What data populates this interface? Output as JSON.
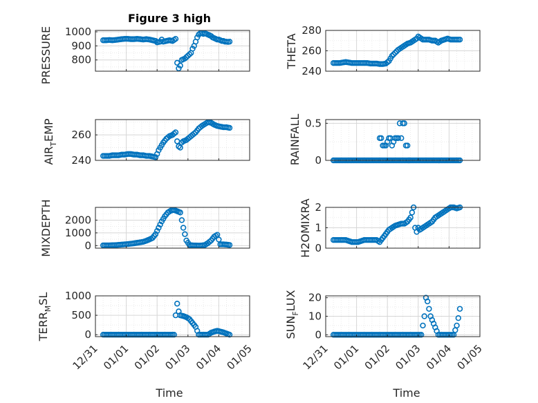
{
  "figure": {
    "title": "Figure 3 high",
    "xlabel": "Time",
    "xticks": [
      "12/31",
      "01/01",
      "01/02",
      "01/03",
      "01/04",
      "01/05"
    ]
  },
  "style": {
    "marker_color": "#0072bd",
    "grid_color": "#dfdfdf",
    "axis_color": "#262626"
  },
  "chart_data": [
    {
      "type": "scatter",
      "title": "Figure 3 high",
      "ylabel": "PRESSURE",
      "xlim": [
        0,
        5
      ],
      "ylim": [
        720,
        1010
      ],
      "yticks": [
        800,
        900,
        1000
      ],
      "xlabels_shown": false,
      "grid": true,
      "x": [
        0.25,
        0.35,
        0.45,
        0.55,
        0.65,
        0.75,
        0.85,
        0.95,
        1.05,
        1.15,
        1.25,
        1.35,
        1.45,
        1.55,
        1.65,
        1.75,
        1.85,
        1.95,
        2.0,
        2.1,
        2.15,
        2.2,
        2.3,
        2.4,
        2.5,
        2.6,
        2.65,
        2.7,
        2.75,
        2.8,
        2.85,
        2.9,
        2.95,
        3.0,
        3.05,
        3.1,
        3.15,
        3.2,
        3.25,
        3.3,
        3.35,
        3.4,
        3.45,
        3.5,
        3.55,
        3.6,
        3.65,
        3.7,
        3.75,
        3.8,
        3.85,
        3.9,
        3.95,
        4.0,
        4.05,
        4.1,
        4.15,
        4.2,
        4.25,
        4.3,
        4.35
      ],
      "y": [
        940,
        940,
        942,
        940,
        942,
        945,
        948,
        950,
        950,
        948,
        948,
        950,
        948,
        945,
        948,
        945,
        940,
        935,
        925,
        930,
        945,
        930,
        935,
        940,
        935,
        950,
        780,
        740,
        760,
        800,
        805,
        810,
        820,
        830,
        840,
        850,
        880,
        900,
        930,
        960,
        980,
        990,
        990,
        985,
        990,
        985,
        980,
        975,
        970,
        960,
        955,
        950,
        945,
        945,
        940,
        935,
        935,
        930,
        930,
        928,
        930
      ]
    },
    {
      "type": "scatter",
      "ylabel": "THETA",
      "xlim": [
        0,
        5
      ],
      "ylim": [
        240,
        280
      ],
      "yticks": [
        240,
        260,
        280
      ],
      "xlabels_shown": false,
      "grid": true,
      "x": [
        0.25,
        0.35,
        0.45,
        0.55,
        0.65,
        0.75,
        0.85,
        0.95,
        1.05,
        1.15,
        1.25,
        1.35,
        1.45,
        1.55,
        1.65,
        1.75,
        1.85,
        1.95,
        2.05,
        2.15,
        2.25,
        2.35,
        2.45,
        2.55,
        2.65,
        2.75,
        2.85,
        2.95,
        3.0,
        3.05,
        3.15,
        3.25,
        3.35,
        3.45,
        3.55,
        3.65,
        3.75,
        3.85,
        3.95,
        4.05,
        4.15,
        4.25,
        4.35
      ],
      "y": [
        248,
        248,
        248,
        248.5,
        249,
        248.5,
        248,
        248,
        248,
        248,
        248,
        248,
        247.5,
        247.5,
        247.5,
        247,
        247,
        247.5,
        250,
        255,
        258,
        261,
        263,
        265,
        267,
        268,
        270,
        272,
        274,
        273,
        271,
        271,
        271,
        270,
        270,
        268,
        270,
        271,
        272,
        271,
        271,
        271,
        271
      ]
    },
    {
      "type": "scatter",
      "ylabel": "AIR_TEMP",
      "xlim": [
        0,
        5
      ],
      "ylim": [
        240,
        272
      ],
      "yticks": [
        240,
        260
      ],
      "xlabels_shown": false,
      "grid": true,
      "x": [
        0.25,
        0.35,
        0.45,
        0.55,
        0.65,
        0.75,
        0.85,
        0.95,
        1.05,
        1.15,
        1.25,
        1.35,
        1.45,
        1.55,
        1.65,
        1.75,
        1.85,
        1.95,
        2.0,
        2.05,
        2.1,
        2.2,
        2.3,
        2.4,
        2.5,
        2.6,
        2.65,
        2.7,
        2.75,
        2.8,
        2.85,
        2.95,
        3.05,
        3.15,
        3.25,
        3.35,
        3.45,
        3.55,
        3.65,
        3.75,
        3.85,
        3.95,
        4.05,
        4.15,
        4.25,
        4.35
      ],
      "y": [
        243.5,
        243.5,
        243.5,
        244,
        244,
        244,
        244.5,
        244.5,
        245,
        245,
        244.5,
        244.5,
        244,
        244,
        243.5,
        243.5,
        243,
        242.5,
        245,
        248,
        250,
        254,
        257,
        259,
        260,
        262,
        255,
        251,
        250,
        254,
        255,
        256,
        258,
        260,
        262,
        265,
        267,
        268.5,
        270,
        269.5,
        268,
        267,
        266.5,
        266,
        266,
        265.5
      ]
    },
    {
      "type": "scatter",
      "ylabel": "RAINFALL",
      "xlim": [
        0,
        5
      ],
      "ylim": [
        0,
        0.55
      ],
      "yticks": [
        0,
        0.5
      ],
      "xlabels_shown": false,
      "grid": true,
      "x": [
        0.25,
        0.35,
        0.45,
        0.55,
        0.65,
        0.75,
        0.85,
        0.95,
        1.05,
        1.15,
        1.25,
        1.35,
        1.45,
        1.55,
        1.65,
        1.75,
        1.85,
        1.95,
        2.05,
        2.15,
        2.25,
        2.35,
        2.45,
        2.55,
        2.65,
        2.75,
        2.85,
        2.95,
        3.05,
        3.15,
        3.25,
        3.35,
        3.45,
        3.55,
        3.65,
        3.75,
        3.85,
        3.95,
        4.05,
        4.15,
        4.25,
        4.35,
        1.75,
        1.8,
        1.85,
        1.9,
        1.95,
        2.05,
        2.1,
        2.15,
        2.25,
        2.3,
        2.35,
        2.4,
        2.45,
        2.5,
        2.55,
        2.6,
        2.65,
        2.7
      ],
      "y": [
        0,
        0,
        0,
        0,
        0,
        0,
        0,
        0,
        0,
        0,
        0,
        0,
        0,
        0,
        0,
        0,
        0,
        0,
        0,
        0,
        0,
        0,
        0,
        0,
        0,
        0,
        0,
        0,
        0,
        0,
        0,
        0,
        0,
        0,
        0,
        0,
        0,
        0,
        0,
        0,
        0,
        0,
        0.3,
        0.3,
        0.2,
        0.2,
        0.2,
        0.3,
        0.3,
        0.2,
        0.3,
        0.3,
        0.3,
        0.5,
        0.3,
        0.5,
        0.5,
        0.2,
        0.2,
        0
      ]
    },
    {
      "type": "scatter",
      "ylabel": "MIXDEPTH",
      "xlim": [
        0,
        5
      ],
      "ylim": [
        -200,
        3000
      ],
      "yticks": [
        0,
        1000,
        2000
      ],
      "xlabels_shown": false,
      "grid": true,
      "x": [
        0.25,
        0.35,
        0.45,
        0.55,
        0.65,
        0.75,
        0.85,
        0.95,
        1.05,
        1.15,
        1.25,
        1.35,
        1.45,
        1.55,
        1.65,
        1.75,
        1.85,
        1.95,
        2.05,
        2.15,
        2.25,
        2.35,
        2.45,
        2.55,
        2.65,
        2.7,
        2.75,
        2.85,
        2.95,
        3.05,
        3.15,
        3.25,
        3.35,
        3.45,
        3.55,
        3.65,
        3.75,
        3.85,
        3.95,
        4.05,
        4.15,
        4.25,
        4.35
      ],
      "y": [
        20,
        20,
        20,
        30,
        40,
        60,
        80,
        100,
        120,
        150,
        180,
        220,
        260,
        300,
        380,
        480,
        600,
        900,
        1400,
        1900,
        2300,
        2600,
        2750,
        2800,
        2700,
        2650,
        2600,
        1400,
        400,
        50,
        20,
        10,
        0,
        10,
        50,
        200,
        400,
        700,
        850,
        100,
        100,
        80,
        50
      ]
    },
    {
      "type": "scatter",
      "ylabel": "H2OMIXRA",
      "xlim": [
        0,
        5
      ],
      "ylim": [
        0,
        2
      ],
      "yticks": [
        0,
        1,
        2
      ],
      "xlabels_shown": false,
      "grid": true,
      "x": [
        0.25,
        0.35,
        0.45,
        0.55,
        0.65,
        0.75,
        0.85,
        0.95,
        1.05,
        1.15,
        1.25,
        1.35,
        1.45,
        1.55,
        1.65,
        1.75,
        1.85,
        1.95,
        2.05,
        2.15,
        2.25,
        2.35,
        2.45,
        2.55,
        2.65,
        2.75,
        2.85,
        2.9,
        2.95,
        3.0,
        3.05,
        3.15,
        3.25,
        3.35,
        3.45,
        3.55,
        3.65,
        3.75,
        3.85,
        3.95,
        4.05,
        4.15,
        4.25,
        4.35
      ],
      "y": [
        0.4,
        0.4,
        0.4,
        0.4,
        0.4,
        0.35,
        0.3,
        0.3,
        0.3,
        0.35,
        0.4,
        0.4,
        0.4,
        0.4,
        0.4,
        0.3,
        0.5,
        0.7,
        0.9,
        1.0,
        1.1,
        1.15,
        1.2,
        1.2,
        1.3,
        1.5,
        2.0,
        1.0,
        0.8,
        1.0,
        0.9,
        1.0,
        1.1,
        1.2,
        1.3,
        1.5,
        1.6,
        1.7,
        1.8,
        1.9,
        2.0,
        2.0,
        1.95,
        2.0
      ]
    },
    {
      "type": "scatter",
      "ylabel": "TERR_MSL",
      "xlim": [
        0,
        5
      ],
      "ylim": [
        -50,
        1000
      ],
      "yticks": [
        0,
        500,
        1000
      ],
      "xlabels_shown": true,
      "grid": true,
      "x": [
        0.25,
        0.35,
        0.45,
        0.55,
        0.65,
        0.75,
        0.85,
        0.95,
        1.05,
        1.15,
        1.25,
        1.35,
        1.45,
        1.55,
        1.65,
        1.75,
        1.85,
        1.95,
        2.05,
        2.15,
        2.25,
        2.35,
        2.45,
        2.55,
        2.6,
        2.65,
        2.7,
        2.75,
        2.85,
        2.95,
        3.05,
        3.15,
        3.25,
        3.35,
        3.45,
        3.55,
        3.65,
        3.75,
        3.85,
        3.95,
        4.05,
        4.15,
        4.25,
        4.35
      ],
      "y": [
        0,
        0,
        0,
        0,
        0,
        0,
        0,
        0,
        0,
        0,
        0,
        0,
        0,
        0,
        0,
        0,
        0,
        0,
        0,
        0,
        0,
        0,
        0,
        0,
        500,
        800,
        600,
        500,
        480,
        450,
        400,
        300,
        200,
        0,
        0,
        0,
        0,
        50,
        80,
        100,
        80,
        60,
        30,
        0
      ]
    },
    {
      "type": "scatter",
      "ylabel": "SUN_FLUX",
      "xlim": [
        0,
        5
      ],
      "ylim": [
        -1,
        21
      ],
      "yticks": [
        0,
        10,
        20
      ],
      "xlabels_shown": true,
      "grid": true,
      "x": [
        0.25,
        0.35,
        0.45,
        0.55,
        0.65,
        0.75,
        0.85,
        0.95,
        1.05,
        1.15,
        1.25,
        1.35,
        1.45,
        1.55,
        1.65,
        1.75,
        1.85,
        1.95,
        2.05,
        2.15,
        2.25,
        2.35,
        2.45,
        2.55,
        2.65,
        2.75,
        2.85,
        2.95,
        3.0,
        3.05,
        3.1,
        3.15,
        3.2,
        3.25,
        3.3,
        3.35,
        3.4,
        3.45,
        3.5,
        3.55,
        3.6,
        3.65,
        3.75,
        3.85,
        3.95,
        4.05,
        4.15,
        4.25,
        4.3,
        4.35
      ],
      "y": [
        0,
        0,
        0,
        0,
        0,
        0,
        0,
        0,
        0,
        0,
        0,
        0,
        0,
        0,
        0,
        0,
        0,
        0,
        0,
        0,
        0,
        0,
        0,
        0,
        0,
        0,
        0,
        0,
        0,
        0,
        0,
        5,
        10,
        20,
        18,
        14,
        10,
        8,
        6,
        4,
        2,
        0,
        0,
        0,
        0,
        0,
        0,
        5,
        9,
        14
      ]
    }
  ]
}
